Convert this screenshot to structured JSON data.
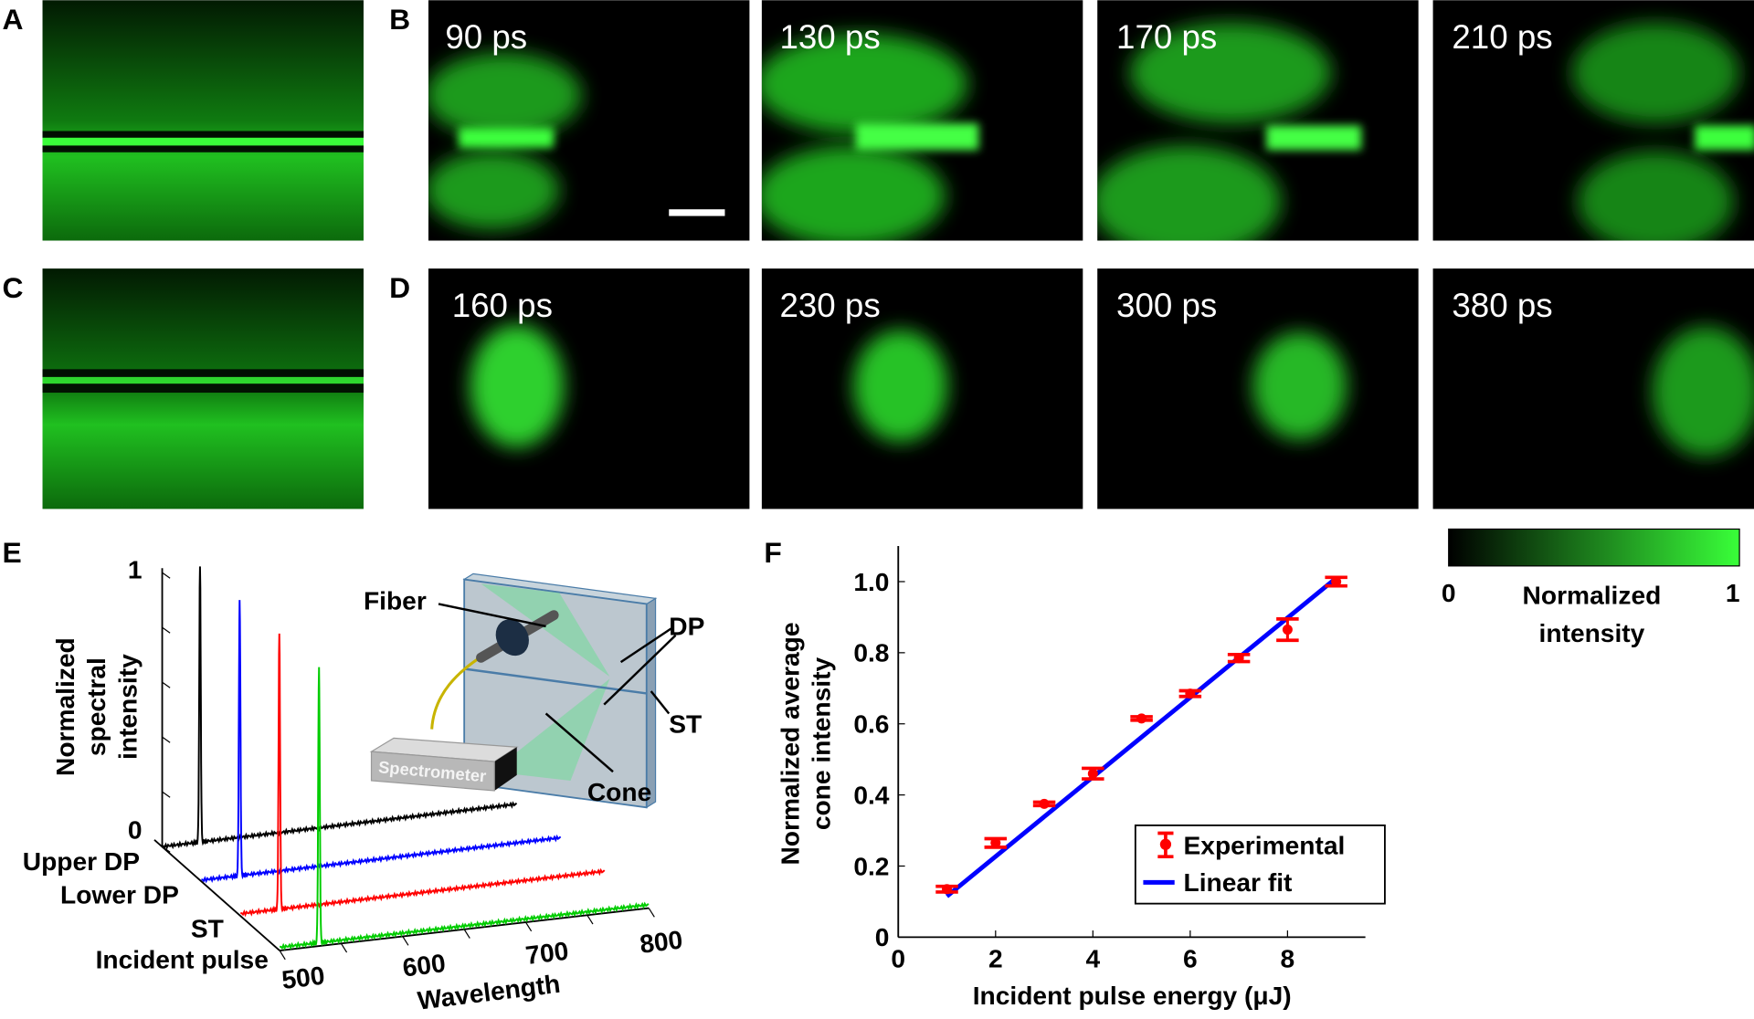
{
  "panels": {
    "A": "A",
    "B": "B",
    "C": "C",
    "D": "D",
    "E": "E",
    "F": "F"
  },
  "b_times": [
    "90 ps",
    "130 ps",
    "170 ps",
    "210 ps"
  ],
  "d_times": [
    "160 ps",
    "230 ps",
    "300 ps",
    "380 ps"
  ],
  "colorbar": {
    "min": "0",
    "max": "1",
    "label_line1": "Normalized",
    "label_line2": "intensity",
    "colors": [
      "#000000",
      "#39ff39"
    ]
  },
  "inset": {
    "fiber": "Fiber",
    "dp": "DP",
    "st": "ST",
    "cone": "Cone",
    "spectrometer": "Spectrometer"
  },
  "chart_data": [
    {
      "panel": "E",
      "type": "line",
      "ylabel_lines": [
        "Normalized",
        "spectral",
        "intensity"
      ],
      "xlabel": "Wavelength",
      "xticks": [
        "500",
        "600",
        "700",
        "800"
      ],
      "xlim": [
        500,
        800
      ],
      "yticks": [
        "0",
        "1"
      ],
      "ylim": [
        0,
        1
      ],
      "series": [
        {
          "name": "Upper DP",
          "color": "#000000",
          "peak_wavelength": 532,
          "peak_value": 1
        },
        {
          "name": "Lower DP",
          "color": "#0000ff",
          "peak_wavelength": 532,
          "peak_value": 1
        },
        {
          "name": "ST",
          "color": "#ff0000",
          "peak_wavelength": 532,
          "peak_value": 1
        },
        {
          "name": "Incident pulse",
          "color": "#00cc00",
          "peak_wavelength": 532,
          "peak_value": 1
        }
      ]
    },
    {
      "panel": "F",
      "type": "scatter",
      "xlabel": "Incident pulse energy (μJ)",
      "ylabel_lines": [
        "Normalized  average",
        "cone intensity"
      ],
      "xlim": [
        0,
        9.6
      ],
      "ylim": [
        0,
        1.1
      ],
      "xticks": [
        "0",
        "2",
        "4",
        "6",
        "8"
      ],
      "yticks": [
        "0",
        "0.2",
        "0.4",
        "0.6",
        "0.8",
        "1.0"
      ],
      "legend": "lower-right",
      "series": [
        {
          "name": "Experimental",
          "color": "#ff0000",
          "x": [
            1,
            2,
            3,
            4,
            5,
            6,
            7,
            8,
            9
          ],
          "y": [
            0.135,
            0.265,
            0.375,
            0.46,
            0.615,
            0.685,
            0.785,
            0.865,
            1.0
          ],
          "error": [
            0.008,
            0.012,
            0.005,
            0.015,
            0.005,
            0.008,
            0.01,
            0.03,
            0.012
          ]
        },
        {
          "name": "Linear fit",
          "color": "#0000ff",
          "x": [
            1,
            9
          ],
          "y": [
            0.115,
            1.01
          ]
        }
      ]
    }
  ]
}
